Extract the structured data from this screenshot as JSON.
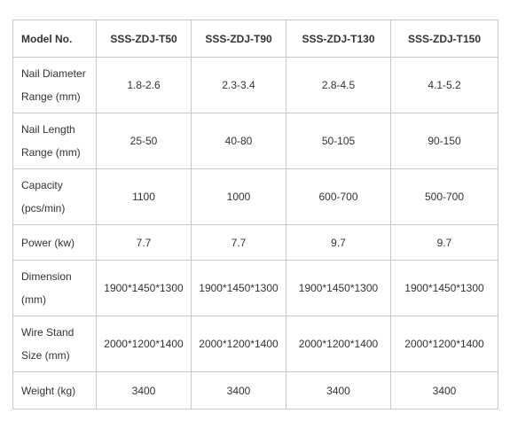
{
  "table": {
    "header": {
      "label": "Model No.",
      "models": [
        "SSS-ZDJ-T50",
        "SSS-ZDJ-T90",
        "SSS-ZDJ-T130",
        "SSS-ZDJ-T150"
      ]
    },
    "rows": [
      {
        "label": [
          "Nail Diameter",
          "Range (mm)"
        ],
        "values": [
          "1.8-2.6",
          "2.3-3.4",
          "2.8-4.5",
          "4.1-5.2"
        ]
      },
      {
        "label": [
          "Nail Length",
          "Range (mm)"
        ],
        "values": [
          "25-50",
          "40-80",
          "50-105",
          "90-150"
        ]
      },
      {
        "label": [
          "Capacity",
          "(pcs/min)"
        ],
        "values": [
          "1100",
          "1000",
          "600-700",
          "500-700"
        ]
      },
      {
        "label": [
          "Power (kw)"
        ],
        "values": [
          "7.7",
          "7.7",
          "9.7",
          "9.7"
        ]
      },
      {
        "label": [
          "Dimension",
          "(mm)"
        ],
        "values": [
          "1900*1450*1300",
          "1900*1450*1300",
          "1900*1450*1300",
          "1900*1450*1300"
        ]
      },
      {
        "label": [
          "Wire Stand",
          "Size (mm)"
        ],
        "values": [
          "2000*1200*1400",
          "2000*1200*1400",
          "2000*1200*1400",
          "2000*1200*1400"
        ]
      },
      {
        "label": [
          "Weight (kg)"
        ],
        "values": [
          "3400",
          "3400",
          "3400",
          "3400"
        ]
      }
    ]
  }
}
